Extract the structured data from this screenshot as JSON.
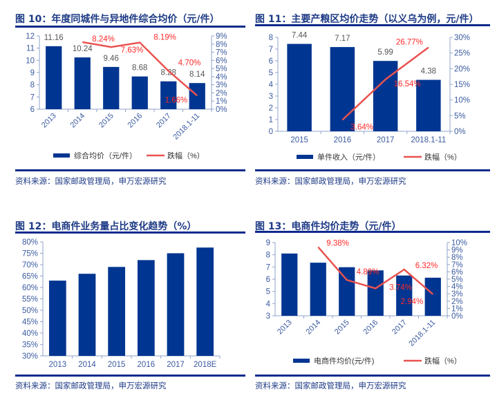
{
  "colors": {
    "bar": "#003591",
    "line": "#e8524f",
    "line_label": "#ff2a2a",
    "axis_text": "#3a5aa0",
    "title": "#1d3a85"
  },
  "chart_data": [
    {
      "type": "bar+line",
      "title": "图 10：年度同城件与异地件综合均价（元/件）",
      "categories": [
        "2013",
        "2014",
        "2015",
        "2016",
        "2017",
        "2018.1-11"
      ],
      "series": [
        {
          "name": "综合均价（元/件）",
          "type": "bar",
          "axis": "left",
          "values": [
            11.16,
            10.24,
            9.46,
            8.68,
            8.28,
            8.14
          ],
          "labels": [
            "11.16",
            "10.24",
            "9.46",
            "8.68",
            "8.28",
            "8.14"
          ]
        },
        {
          "name": "跌幅（%）",
          "type": "line",
          "axis": "right",
          "values": [
            null,
            8.24,
            7.63,
            8.19,
            4.7,
            1.66
          ],
          "labels": [
            "",
            "8.24%",
            "7.63%",
            "8.19%",
            "4.70%",
            "1.66%"
          ]
        }
      ],
      "ylim": [
        6,
        12
      ],
      "yticks": [
        "6",
        "7",
        "8",
        "9",
        "10",
        "11",
        "12"
      ],
      "y2lim": [
        0,
        9
      ],
      "y2ticks": [
        "0%",
        "1%",
        "2%",
        "3%",
        "4%",
        "5%",
        "6%",
        "7%",
        "8%",
        "9%"
      ],
      "source": "资料来源：国家邮政管理局，申万宏源研究"
    },
    {
      "type": "bar+line",
      "title": "图 11：主要产粮区均价走势（以义乌为例，元/件）",
      "categories": [
        "2015",
        "2016",
        "2017",
        "2018.1-11"
      ],
      "series": [
        {
          "name": "单件收入（元/件）",
          "type": "bar",
          "axis": "left",
          "values": [
            7.44,
            7.17,
            5.99,
            4.38
          ],
          "labels": [
            "7.44",
            "7.17",
            "5.99",
            "4.38"
          ]
        },
        {
          "name": "跌幅（%）",
          "type": "line",
          "axis": "right",
          "values": [
            null,
            3.64,
            16.54,
            26.77
          ],
          "labels": [
            "",
            "3.64%",
            "16.54%",
            "26.77%"
          ]
        }
      ],
      "ylim": [
        0,
        8
      ],
      "yticks": [
        "0",
        "1",
        "2",
        "3",
        "4",
        "5",
        "6",
        "7",
        "8"
      ],
      "y2lim": [
        0,
        30
      ],
      "y2ticks": [
        "0%",
        "5%",
        "10%",
        "15%",
        "20%",
        "25%",
        "30%"
      ],
      "source": "资料来源：国家邮政管理局，申万宏源研究"
    },
    {
      "type": "bar",
      "title": "图 12：电商件业务量占比变化趋势（%）",
      "categories": [
        "2013",
        "2014",
        "2015",
        "2016",
        "2017",
        "2018E"
      ],
      "series": [
        {
          "name": "电商件占比",
          "type": "bar",
          "axis": "left",
          "values": [
            63,
            66,
            69,
            72,
            75,
            77.5
          ],
          "labels": []
        }
      ],
      "ylim": [
        30,
        80
      ],
      "yticks": [
        "30%",
        "35%",
        "40%",
        "45%",
        "50%",
        "55%",
        "60%",
        "65%",
        "70%",
        "75%",
        "80%"
      ],
      "source": "资料来源：国家邮政管理局，申万宏源研究"
    },
    {
      "type": "bar+line",
      "title": "图 13：电商件均价走势（元/件）",
      "categories": [
        "2013",
        "2014",
        "2015",
        "2016",
        "2017",
        "2018.1-11"
      ],
      "series": [
        {
          "name": "电商件均价(元/件)",
          "type": "bar",
          "axis": "left",
          "values": [
            8.1,
            7.35,
            6.98,
            6.72,
            6.3,
            6.12
          ],
          "labels": []
        },
        {
          "name": "跌幅（%）",
          "type": "line",
          "axis": "right",
          "values": [
            null,
            9.38,
            4.89,
            3.74,
            6.32,
            2.94
          ],
          "labels": [
            "",
            "9.38%",
            "4.89%",
            "3.74%",
            "6.32%",
            "2.94%"
          ]
        }
      ],
      "ylim": [
        3,
        9
      ],
      "yticks": [
        "3",
        "4",
        "5",
        "6",
        "7",
        "8",
        "9"
      ],
      "y2lim": [
        0,
        10
      ],
      "y2ticks": [
        "0%",
        "1%",
        "2%",
        "3%",
        "4%",
        "5%",
        "6%",
        "7%",
        "8%",
        "9%",
        "10%"
      ],
      "source": "资料来源：国家邮政管理局，申万宏源研究"
    }
  ]
}
